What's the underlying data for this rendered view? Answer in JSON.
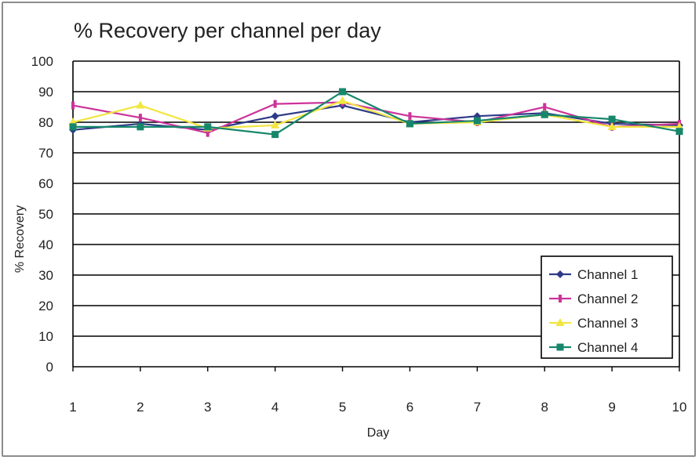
{
  "chart_data": {
    "type": "line",
    "title": "% Recovery per channel per day",
    "xlabel": "Day",
    "ylabel": "% Recovery",
    "x": [
      1,
      2,
      3,
      4,
      5,
      6,
      7,
      8,
      9,
      10
    ],
    "xlim": [
      1,
      10
    ],
    "ylim": [
      0,
      100
    ],
    "yticks": [
      0,
      10,
      20,
      30,
      40,
      50,
      60,
      70,
      80,
      90,
      100
    ],
    "grid": true,
    "legend_position": "bottom-right",
    "series": [
      {
        "name": "Channel 1",
        "color": "#2e3a87",
        "marker": "diamond",
        "values": [
          77.5,
          79.5,
          77.5,
          82,
          85.5,
          80,
          82,
          83,
          79.5,
          79
        ]
      },
      {
        "name": "Channel 2",
        "color": "#cc3399",
        "marker": "bar",
        "values": [
          85.5,
          81.5,
          76.5,
          86,
          86.5,
          82,
          80,
          85,
          78.5,
          79.5
        ]
      },
      {
        "name": "Channel 3",
        "color": "#f2e641",
        "marker": "triangle",
        "values": [
          80,
          85.5,
          78,
          79,
          87,
          79.5,
          80,
          82.5,
          78.5,
          78.5
        ]
      },
      {
        "name": "Channel 4",
        "color": "#17876b",
        "marker": "square",
        "values": [
          78.5,
          78.5,
          78.5,
          76,
          90,
          79.5,
          80.5,
          82.5,
          81,
          77
        ]
      }
    ]
  }
}
